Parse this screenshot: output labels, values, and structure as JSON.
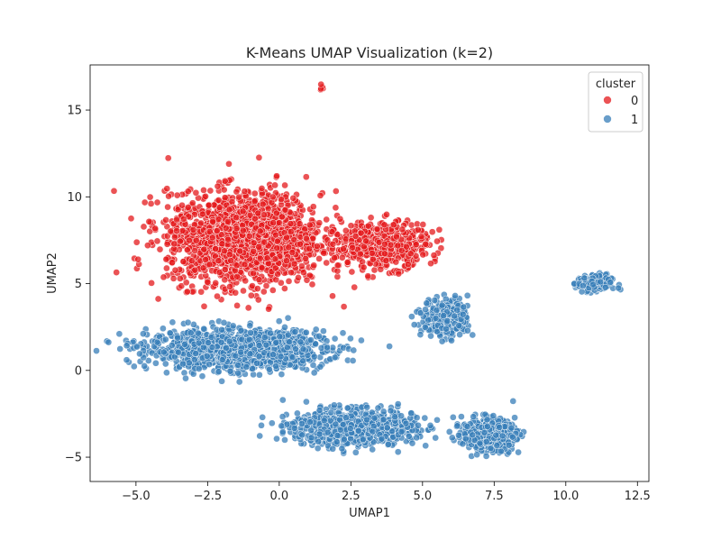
{
  "chart_data": {
    "type": "scatter",
    "title": "K-Means UMAP Visualization (k=2)",
    "xlabel": "UMAP1",
    "ylabel": "UMAP2",
    "xlim": [
      -6.6,
      12.9
    ],
    "ylim": [
      -6.4,
      17.6
    ],
    "x_ticks": [
      -5.0,
      -2.5,
      0.0,
      2.5,
      5.0,
      7.5,
      10.0,
      12.5
    ],
    "x_tick_labels": [
      "−5.0",
      "−2.5",
      "0.0",
      "2.5",
      "5.0",
      "7.5",
      "10.0",
      "12.5"
    ],
    "y_ticks": [
      -5,
      0,
      5,
      10,
      15
    ],
    "y_tick_labels": [
      "−5",
      "0",
      "5",
      "10",
      "15"
    ],
    "grid": false,
    "legend": {
      "title": "cluster",
      "position": "top-right"
    },
    "series": [
      {
        "name": "0",
        "color": "#e41a1c",
        "regions": [
          {
            "label": "main-upper-mass",
            "center": [
              -1.2,
              7.6
            ],
            "spread": [
              2.7,
              2.6
            ],
            "approx_points": 1800
          },
          {
            "label": "right-tail",
            "center": [
              3.6,
              7.2
            ],
            "spread": [
              1.6,
              1.3
            ],
            "approx_points": 500
          },
          {
            "label": "top-outlier",
            "center": [
              1.5,
              16.3
            ],
            "spread": [
              0.1,
              0.15
            ],
            "approx_points": 6
          }
        ]
      },
      {
        "name": "1",
        "color": "#377eb8",
        "regions": [
          {
            "label": "lower-band",
            "center": [
              -1.5,
              1.2
            ],
            "spread": [
              3.0,
              1.1
            ],
            "approx_points": 1400
          },
          {
            "label": "bottom-blob",
            "center": [
              2.6,
              -3.3
            ],
            "spread": [
              2.1,
              1.0
            ],
            "approx_points": 900
          },
          {
            "label": "bottom-right-blob",
            "center": [
              7.3,
              -3.7
            ],
            "spread": [
              0.9,
              0.9
            ],
            "approx_points": 500
          },
          {
            "label": "mid-right-blob",
            "center": [
              5.8,
              3.0
            ],
            "spread": [
              0.8,
              1.1
            ],
            "approx_points": 300
          },
          {
            "label": "far-right-island",
            "center": [
              11.0,
              5.0
            ],
            "spread": [
              0.6,
              0.5
            ],
            "approx_points": 180
          }
        ]
      }
    ]
  }
}
